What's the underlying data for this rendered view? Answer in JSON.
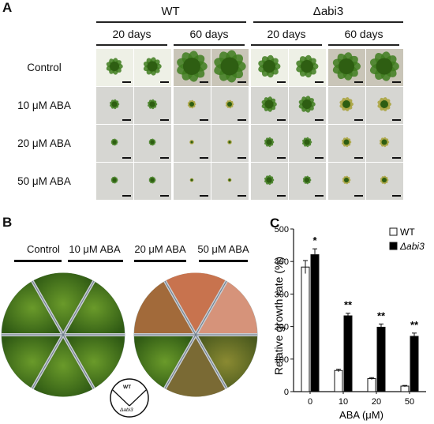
{
  "panel_a": {
    "letter": "A",
    "groups": [
      "WT",
      "Δabi3"
    ],
    "group_italic_part": "abi3",
    "durations": [
      "20 days",
      "60 days",
      "20 days",
      "60 days"
    ],
    "treatments": [
      "Control",
      "10 μM ABA",
      "20 μM ABA",
      "50 μM ABA"
    ],
    "colors": {
      "tile_bg_light": "#eef0e6",
      "tile_bg_dark": "#d6d6d2",
      "moss_green": "#3f7d1f",
      "moss_yellow": "#a8a23a"
    }
  },
  "panel_b": {
    "letter": "B",
    "labels": [
      "Control",
      "10 μM ABA",
      "20 μM ABA",
      "50 μM ABA"
    ],
    "key_wt": "WT",
    "key_abi3": "Δabi3"
  },
  "chart_data": {
    "type": "bar",
    "letter": "C",
    "categories": [
      "0",
      "10",
      "20",
      "50"
    ],
    "xlabel": "ABA (μM)",
    "ylabel": "Relative growth rate (%)",
    "ylim": [
      0,
      500
    ],
    "yticks": [
      0,
      100,
      200,
      300,
      400,
      500
    ],
    "series": [
      {
        "name": "WT",
        "values": [
          383,
          65,
          40,
          17
        ],
        "errors": [
          20,
          4,
          3,
          2
        ],
        "color": "#ffffff"
      },
      {
        "name": "Δabi3",
        "values": [
          421,
          233,
          198,
          170
        ],
        "errors": [
          18,
          8,
          10,
          10
        ],
        "color": "#000000"
      }
    ],
    "annotations": [
      "*",
      "**",
      "**",
      "**"
    ],
    "legend": "top-right"
  }
}
